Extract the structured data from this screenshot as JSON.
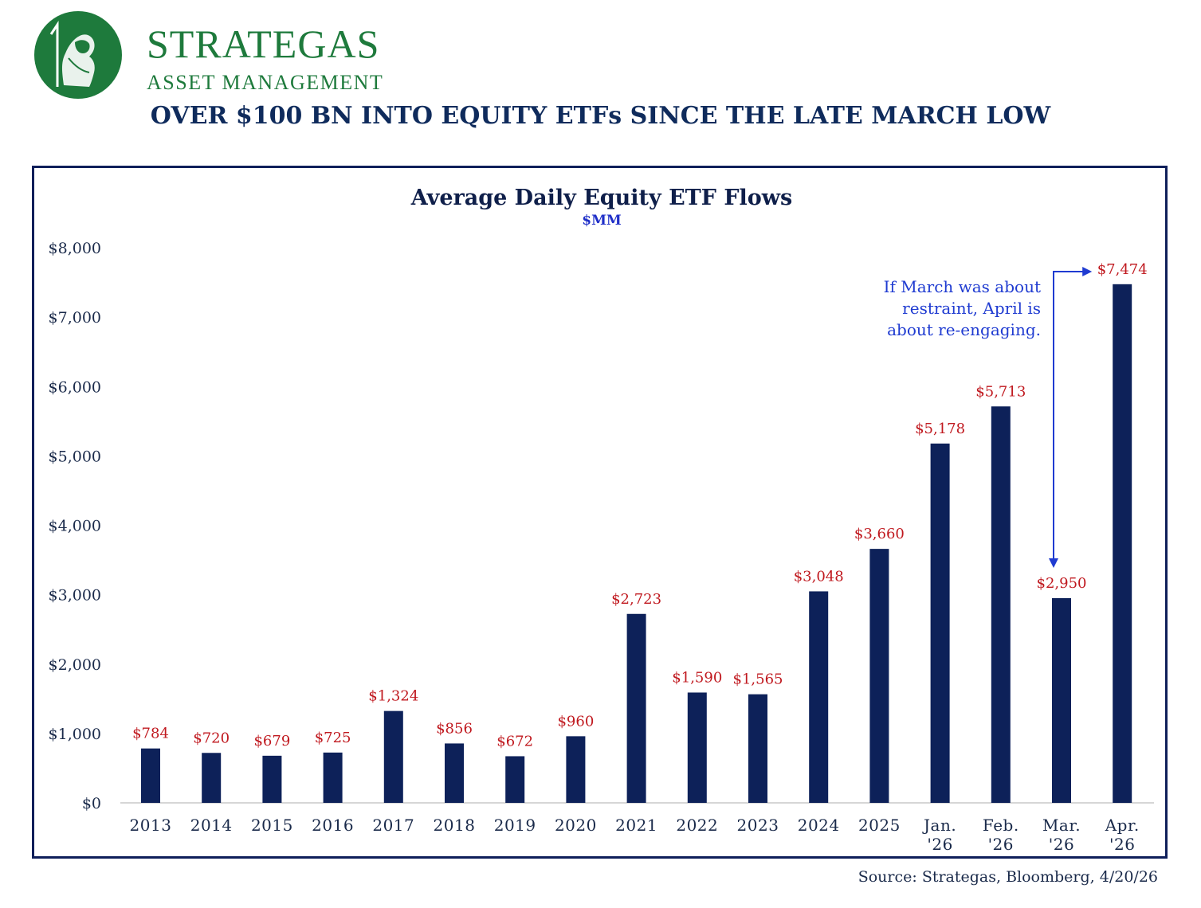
{
  "brand": {
    "name": "STRATEGAS",
    "subtitle": "ASSET MANAGEMENT",
    "color": "#1e7a3c"
  },
  "headline": "OVER $100 BN INTO EQUITY ETFs SINCE THE LATE MARCH LOW",
  "source": "Source: Strategas, Bloomberg, 4/20/26",
  "chart_data": {
    "type": "bar",
    "title": "Average Daily Equity ETF Flows",
    "subtitle": "$MM",
    "xlabel": "",
    "ylabel": "",
    "ylim": [
      0,
      8000
    ],
    "y_ticks": [
      {
        "value": 0,
        "label": "$0"
      },
      {
        "value": 1000,
        "label": "$1,000"
      },
      {
        "value": 2000,
        "label": "$2,000"
      },
      {
        "value": 3000,
        "label": "$3,000"
      },
      {
        "value": 4000,
        "label": "$4,000"
      },
      {
        "value": 5000,
        "label": "$5,000"
      },
      {
        "value": 6000,
        "label": "$6,000"
      },
      {
        "value": 7000,
        "label": "$7,000"
      },
      {
        "value": 8000,
        "label": "$8,000"
      }
    ],
    "categories": [
      [
        "2013"
      ],
      [
        "2014"
      ],
      [
        "2015"
      ],
      [
        "2016"
      ],
      [
        "2017"
      ],
      [
        "2018"
      ],
      [
        "2019"
      ],
      [
        "2020"
      ],
      [
        "2021"
      ],
      [
        "2022"
      ],
      [
        "2023"
      ],
      [
        "2024"
      ],
      [
        "2025"
      ],
      [
        "Jan.",
        "'26"
      ],
      [
        "Feb.",
        "'26"
      ],
      [
        "Mar.",
        "'26"
      ],
      [
        "Apr.",
        "'26"
      ]
    ],
    "values": [
      784,
      720,
      679,
      725,
      1324,
      856,
      672,
      960,
      2723,
      1590,
      1565,
      3048,
      3660,
      5178,
      5713,
      2950,
      7474
    ],
    "labels": [
      "$784",
      "$720",
      "$679",
      "$725",
      "$1,324",
      "$856",
      "$672",
      "$960",
      "$2,723",
      "$1,590",
      "$1,565",
      "$3,048",
      "$3,660",
      "$5,178",
      "$5,713",
      "$2,950",
      "$7,474"
    ],
    "bar_color": "#0d2159",
    "label_color": "#c0191f",
    "annotation": {
      "lines": [
        "If March was about",
        "restraint, April is",
        "about re-engaging."
      ],
      "color": "#1f3bd1",
      "from_category": 15,
      "to_category": 16
    }
  }
}
